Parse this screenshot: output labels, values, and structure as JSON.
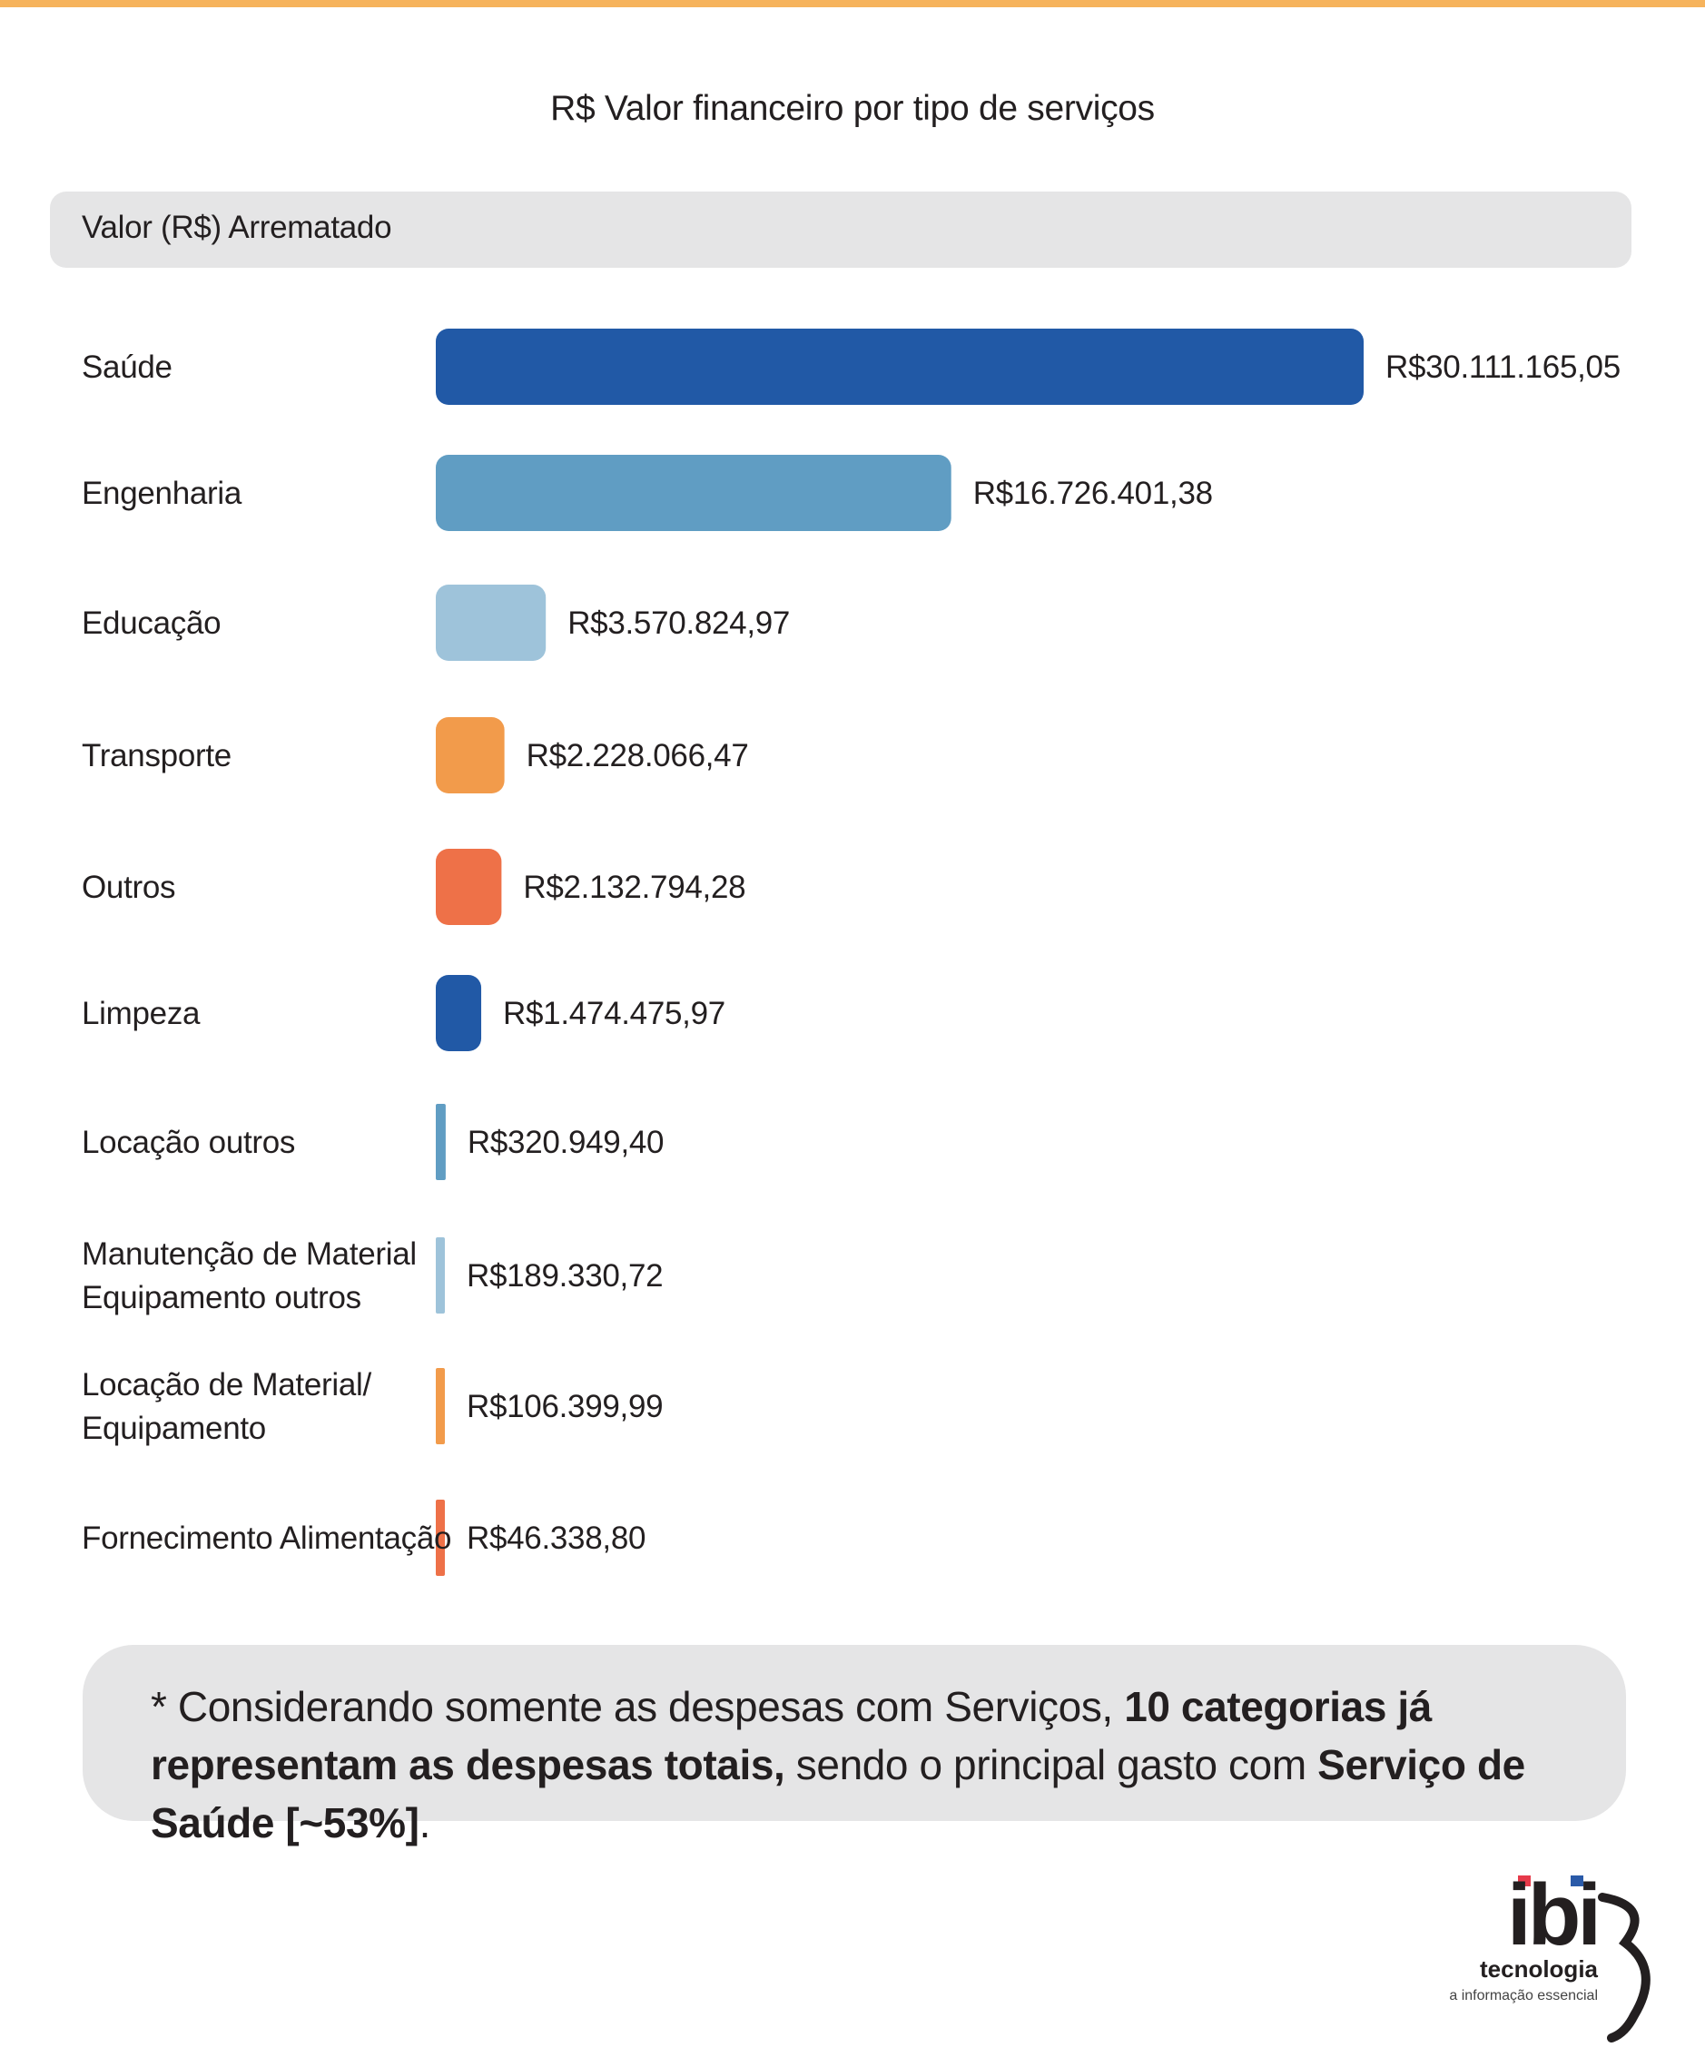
{
  "chart_data": {
    "type": "bar",
    "orientation": "horizontal",
    "title": "R$ Valor financeiro por tipo de serviços",
    "series_name": "Valor (R$) Arrematado",
    "categories": [
      [
        "Saúde"
      ],
      [
        "Engenharia"
      ],
      [
        "Educação"
      ],
      [
        "Transporte"
      ],
      [
        "Outros"
      ],
      [
        "Limpeza"
      ],
      [
        "Locação outros"
      ],
      [
        "Manutenção de Material",
        "Equipamento outros"
      ],
      [
        "Locação de Material/",
        "Equipamento"
      ],
      [
        "Fornecimento Alimentação"
      ]
    ],
    "values": [
      30111165.05,
      16726401.38,
      3570824.97,
      2228066.47,
      2132794.28,
      1474475.97,
      320949.4,
      189330.72,
      106399.99,
      46338.8
    ],
    "value_labels": [
      "R$30.111.165,05",
      "R$16.726.401,38",
      "R$3.570.824,97",
      "R$2.228.066,47",
      "R$2.132.794,28",
      "R$1.474.475,97",
      "R$320.949,40",
      "R$189.330,72",
      "R$106.399,99",
      "R$46.338,80"
    ],
    "colors": [
      "#2159a6",
      "#609dc3",
      "#9ec3da",
      "#f29b4b",
      "#ee7148",
      "#2159a6",
      "#609dc3",
      "#9ec3da",
      "#f29b4b",
      "#ee7148"
    ],
    "xlim": [
      0,
      30111165.05
    ],
    "grid": false,
    "legend": "none"
  },
  "note": {
    "prefix": "* Considerando somente as despesas com Serviços, ",
    "bold1": "10 categorias já representam as despesas totais,",
    "middle": " sendo o principal gasto com ",
    "bold2": "Serviço de Saúde [~53%]",
    "suffix": "."
  },
  "logo": {
    "name": "ibi",
    "line1": "tecnologia",
    "line2": "a informação essencial",
    "accent_red": "#e63a4a",
    "accent_blue": "#2a5aa8"
  },
  "colors": {
    "top_rule": "#f6b35c",
    "panel": "#e5e5e6"
  }
}
